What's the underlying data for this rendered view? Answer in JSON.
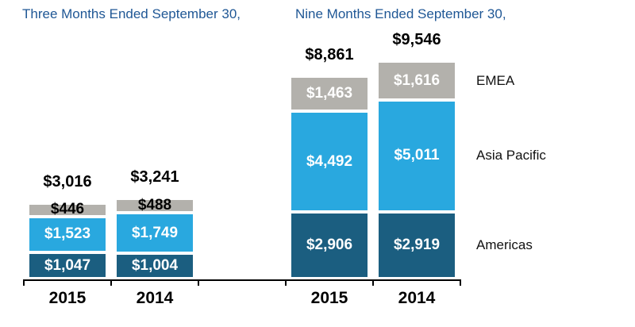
{
  "chart_data": {
    "type": "bar",
    "subtype": "stacked",
    "orientation": "vertical",
    "currency_prefix": "$",
    "groups": [
      "Three Months Ended September 30,",
      "Nine Months Ended September 30,"
    ],
    "categories": [
      "2015",
      "2014",
      "2015",
      "2014"
    ],
    "category_group_index": [
      0,
      0,
      1,
      1
    ],
    "series": [
      {
        "name": "Americas",
        "color": "#1B5E80",
        "values": [
          1047,
          1004,
          2906,
          2919
        ]
      },
      {
        "name": "Asia Pacific",
        "color": "#29A8DF",
        "values": [
          1523,
          1749,
          4492,
          5011
        ]
      },
      {
        "name": "EMEA",
        "color": "#B3B1AC",
        "values": [
          446,
          488,
          1463,
          1616
        ]
      }
    ],
    "totals": [
      3016,
      3241,
      8861,
      9546
    ],
    "total_labels": [
      "$3,016",
      "$3,241",
      "$8,861",
      "$9,546"
    ],
    "segment_labels": {
      "americas": [
        "$1,047",
        "$1,004",
        "$2,906",
        "$2,919"
      ],
      "asia_pacific": [
        "$1,523",
        "$1,749",
        "$4,492",
        "$5,011"
      ],
      "emea": [
        "$446",
        "$488",
        "$1,463",
        "$1,616"
      ]
    },
    "legend_entries": [
      "EMEA",
      "Asia Pacific",
      "Americas"
    ],
    "legend_position": "right",
    "value_axis_visible": false,
    "gridlines": false,
    "title_color": "#1F5795",
    "axis_color": "#000000"
  }
}
